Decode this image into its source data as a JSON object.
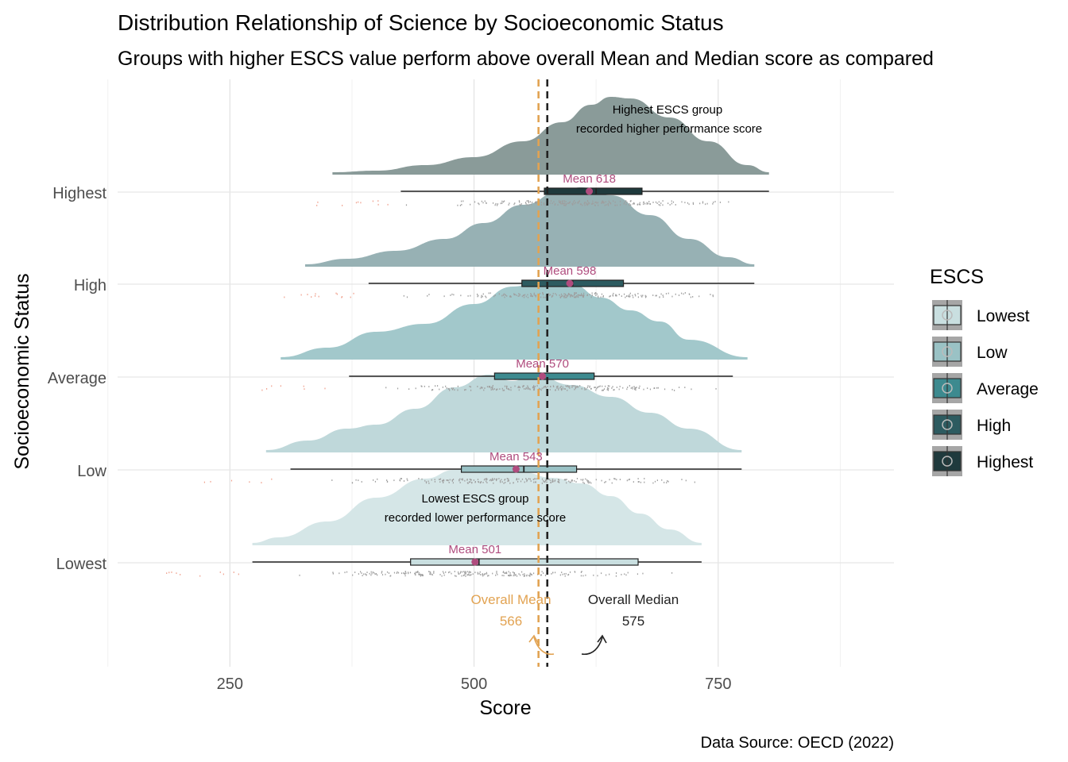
{
  "chart_data": {
    "type": "raincloud",
    "title": "Distribution Relationship of Science by Socioeconomic Status",
    "subtitle": "Groups with higher ESCS value perform above overall Mean and Median score as compared",
    "xlabel": "Score",
    "ylabel": "Socioeconomic Status",
    "caption": "Data Source: OECD (2022)",
    "xlim": [
      135,
      930
    ],
    "x_ticks": [
      250,
      500,
      750
    ],
    "categories": [
      "Lowest",
      "Low",
      "Average",
      "High",
      "Highest"
    ],
    "legend": {
      "title": "ESCS",
      "placement": "right",
      "items": [
        {
          "label": "Lowest",
          "color": "#c9dfe0"
        },
        {
          "label": "Low",
          "color": "#9ac2c5"
        },
        {
          "label": "Average",
          "color": "#3d8a8f"
        },
        {
          "label": "High",
          "color": "#2d5b60"
        },
        {
          "label": "Highest",
          "color": "#1f3a3d"
        }
      ]
    },
    "series": [
      {
        "name": "Lowest",
        "min": 273,
        "q1": 435,
        "median": 505,
        "q3": 668,
        "max": 733,
        "mean": 501,
        "mean_label": "Mean 501",
        "fill": "#d5e6e7",
        "box_fill": "#c9dfe0",
        "density": [
          [
            273,
            0.03
          ],
          [
            300,
            0.1
          ],
          [
            350,
            0.3
          ],
          [
            400,
            0.6
          ],
          [
            450,
            0.84
          ],
          [
            480,
            0.95
          ],
          [
            500,
            1.0
          ],
          [
            520,
            0.98
          ],
          [
            550,
            0.92
          ],
          [
            580,
            0.85
          ],
          [
            610,
            0.78
          ],
          [
            640,
            0.62
          ],
          [
            670,
            0.4
          ],
          [
            700,
            0.2
          ],
          [
            733,
            0.03
          ]
        ]
      },
      {
        "name": "Low",
        "min": 312,
        "q1": 487,
        "median": 551,
        "q3": 605,
        "max": 774,
        "mean": 543,
        "mean_label": "Mean 543",
        "fill": "#bfd8da",
        "box_fill": "#9ac2c5",
        "density": [
          [
            287,
            0.03
          ],
          [
            330,
            0.15
          ],
          [
            370,
            0.3
          ],
          [
            400,
            0.35
          ],
          [
            440,
            0.55
          ],
          [
            480,
            0.82
          ],
          [
            515,
            0.98
          ],
          [
            540,
            0.9
          ],
          [
            560,
            1.0
          ],
          [
            600,
            0.85
          ],
          [
            640,
            0.7
          ],
          [
            680,
            0.5
          ],
          [
            720,
            0.3
          ],
          [
            774,
            0.03
          ]
        ]
      },
      {
        "name": "Average",
        "min": 372,
        "q1": 521,
        "median": 569,
        "q3": 623,
        "max": 765,
        "mean": 570,
        "mean_label": "Mean 570",
        "fill": "#a2c8cb",
        "box_fill": "#3d8a8f",
        "density": [
          [
            302,
            0.03
          ],
          [
            350,
            0.15
          ],
          [
            400,
            0.35
          ],
          [
            450,
            0.45
          ],
          [
            500,
            0.7
          ],
          [
            540,
            0.92
          ],
          [
            570,
            1.0
          ],
          [
            600,
            0.95
          ],
          [
            630,
            0.78
          ],
          [
            660,
            0.62
          ],
          [
            690,
            0.48
          ],
          [
            720,
            0.25
          ],
          [
            780,
            0.03
          ]
        ]
      },
      {
        "name": "High",
        "min": 392,
        "q1": 549,
        "median": 601,
        "q3": 653,
        "max": 787,
        "mean": 598,
        "mean_label": "Mean 598",
        "fill": "#97b1b4",
        "box_fill": "#2d5b60",
        "density": [
          [
            327,
            0.03
          ],
          [
            370,
            0.1
          ],
          [
            420,
            0.2
          ],
          [
            470,
            0.35
          ],
          [
            510,
            0.55
          ],
          [
            550,
            0.78
          ],
          [
            590,
            0.96
          ],
          [
            610,
            1.0
          ],
          [
            640,
            0.9
          ],
          [
            680,
            0.65
          ],
          [
            720,
            0.35
          ],
          [
            760,
            0.12
          ],
          [
            787,
            0.03
          ]
        ]
      },
      {
        "name": "Highest",
        "min": 425,
        "q1": 572,
        "median": 625,
        "q3": 672,
        "max": 802,
        "mean": 618,
        "mean_label": "Mean 618",
        "fill": "#8a9b99",
        "box_fill": "#1f3a3d",
        "density": [
          [
            355,
            0.03
          ],
          [
            400,
            0.05
          ],
          [
            450,
            0.12
          ],
          [
            500,
            0.22
          ],
          [
            550,
            0.42
          ],
          [
            590,
            0.66
          ],
          [
            620,
            0.88
          ],
          [
            640,
            0.98
          ],
          [
            660,
            0.96
          ],
          [
            700,
            0.72
          ],
          [
            740,
            0.42
          ],
          [
            780,
            0.12
          ],
          [
            802,
            0.03
          ]
        ]
      }
    ],
    "overall_mean": {
      "value": 566,
      "label": "Overall Mean",
      "value_label": "566",
      "color": "#e2a352"
    },
    "overall_median": {
      "value": 575,
      "label": "Overall Median",
      "value_label": "575",
      "color": "#222222"
    },
    "annotations": [
      {
        "line1": "Highest ESCS group",
        "line2": "recorded higher performance score"
      },
      {
        "line1": "Lowest ESCS group",
        "line2": "recorded lower performance score"
      }
    ],
    "grid": true
  }
}
